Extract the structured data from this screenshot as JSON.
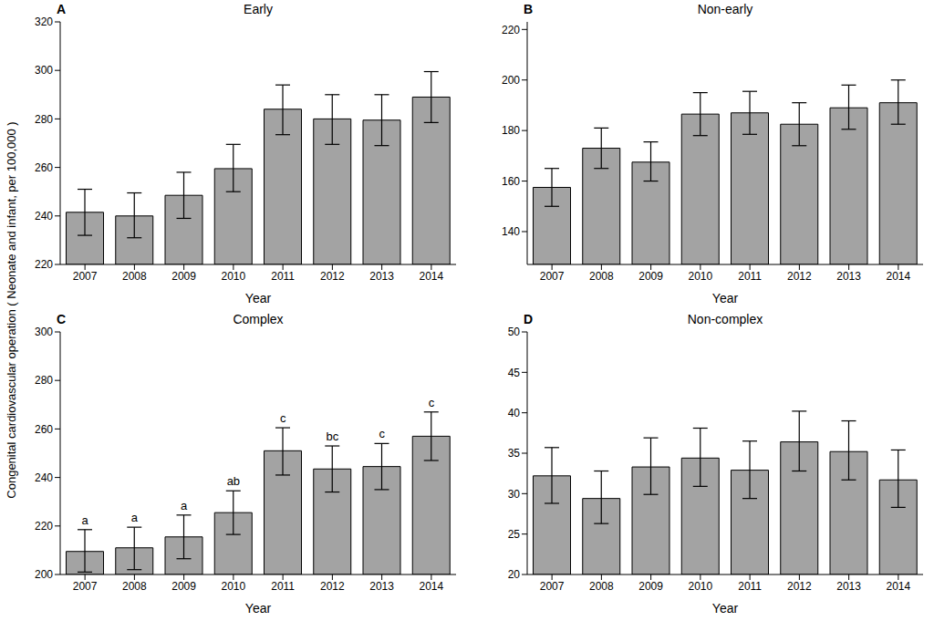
{
  "y_label": "Congenital cardiovascular operation ( Neonate and infant, per 100,000 )",
  "chart_data": [
    {
      "panel": "A",
      "type": "bar",
      "title": "Early",
      "x_label": "Year",
      "categories": [
        "2007",
        "2008",
        "2009",
        "2010",
        "2011",
        "2012",
        "2013",
        "2014"
      ],
      "values": [
        241.5,
        240,
        248.5,
        259.5,
        284,
        280,
        279.5,
        289
      ],
      "error_low": [
        232,
        231,
        239,
        250,
        273.5,
        269.5,
        269,
        278.5
      ],
      "error_high": [
        251,
        249.5,
        258,
        269.5,
        294,
        290,
        290,
        299.5
      ],
      "ylim": [
        220,
        320
      ],
      "yticks": [
        220,
        240,
        260,
        280,
        300,
        320
      ],
      "color": "#a3a3a3"
    },
    {
      "panel": "B",
      "type": "bar",
      "title": "Non-early",
      "x_label": "Year",
      "categories": [
        "2007",
        "2008",
        "2009",
        "2010",
        "2011",
        "2012",
        "2013",
        "2014"
      ],
      "values": [
        157.5,
        173,
        167.5,
        186.5,
        187,
        182.5,
        189,
        191
      ],
      "error_low": [
        150,
        165,
        160,
        178,
        178.5,
        174,
        180.5,
        182.5
      ],
      "error_high": [
        165,
        181,
        175.5,
        195,
        195.5,
        191,
        198,
        200
      ],
      "ylim": [
        127,
        223
      ],
      "yticks": [
        140,
        160,
        180,
        200,
        220
      ],
      "color": "#a3a3a3"
    },
    {
      "panel": "C",
      "type": "bar",
      "title": "Complex",
      "x_label": "Year",
      "categories": [
        "2007",
        "2008",
        "2009",
        "2010",
        "2011",
        "2012",
        "2013",
        "2014"
      ],
      "values": [
        209.5,
        211,
        215.5,
        225.5,
        251,
        243.5,
        244.5,
        257
      ],
      "error_low": [
        201,
        202,
        206.5,
        216.5,
        241,
        234,
        235,
        247
      ],
      "error_high": [
        218.5,
        219.5,
        224.5,
        234.5,
        260.5,
        253,
        254,
        267
      ],
      "significance_letters": [
        "a",
        "a",
        "a",
        "ab",
        "c",
        "bc",
        "c",
        "c"
      ],
      "ylim": [
        200,
        300
      ],
      "yticks": [
        200,
        220,
        240,
        260,
        280,
        300
      ],
      "color": "#a3a3a3"
    },
    {
      "panel": "D",
      "type": "bar",
      "title": "Non-complex",
      "x_label": "Year",
      "categories": [
        "2007",
        "2008",
        "2009",
        "2010",
        "2011",
        "2012",
        "2013",
        "2014"
      ],
      "values": [
        32.2,
        29.4,
        33.3,
        34.4,
        32.9,
        36.4,
        35.2,
        31.7
      ],
      "error_low": [
        28.8,
        26.3,
        29.9,
        30.9,
        29.4,
        32.8,
        31.7,
        28.3
      ],
      "error_high": [
        35.7,
        32.8,
        36.9,
        38.1,
        36.5,
        40.2,
        39,
        35.4
      ],
      "ylim": [
        20,
        50
      ],
      "yticks": [
        20,
        25,
        30,
        35,
        40,
        45,
        50
      ],
      "color": "#a3a3a3"
    }
  ]
}
